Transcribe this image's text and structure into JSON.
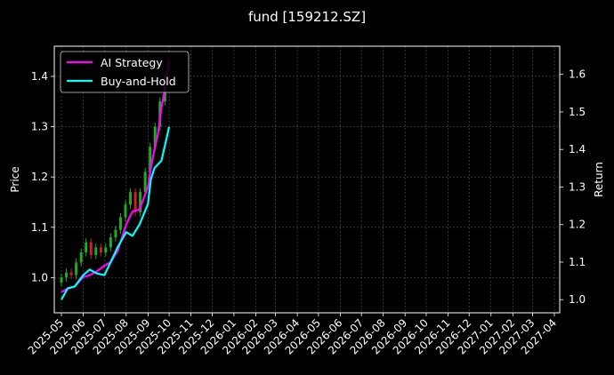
{
  "chart_data": {
    "type": "line",
    "title": "fund [159212.SZ]",
    "ylabel_left": "Price",
    "ylabel_right": "Return",
    "xlabel": "",
    "grid": true,
    "legend_position": "top-left",
    "background": "#000000",
    "x_ticks": [
      "2025-05",
      "2025-06",
      "2025-07",
      "2025-08",
      "2025-09",
      "2025-10",
      "2025-11",
      "2025-12",
      "2026-01",
      "2026-02",
      "2026-03",
      "2026-04",
      "2026-05",
      "2026-06",
      "2026-07",
      "2026-08",
      "2026-09",
      "2026-10",
      "2026-11",
      "2026-12",
      "2027-01",
      "2027-02",
      "2027-03",
      "2027-04"
    ],
    "y_left": {
      "ticks": [
        "1.0",
        "1.1",
        "1.2",
        "1.3",
        "1.4"
      ],
      "range": [
        0.93,
        1.46
      ]
    },
    "y_right": {
      "ticks": [
        "1.0",
        "1.1",
        "1.2",
        "1.3",
        "1.4",
        "1.5",
        "1.6"
      ],
      "range": [
        0.965,
        1.675
      ]
    },
    "series": [
      {
        "name": "AI Strategy",
        "axis": "right",
        "color": "#ff00ff",
        "x": [
          "2025-05-01",
          "2025-05-10",
          "2025-05-20",
          "2025-06-01",
          "2025-06-10",
          "2025-06-20",
          "2025-07-01",
          "2025-07-10",
          "2025-07-20",
          "2025-08-01",
          "2025-08-10",
          "2025-08-20",
          "2025-09-01",
          "2025-09-05",
          "2025-09-10",
          "2025-09-15",
          "2025-09-20",
          "2025-09-25",
          "2025-10-01"
        ],
        "y": [
          1.02,
          1.03,
          1.035,
          1.06,
          1.065,
          1.075,
          1.09,
          1.1,
          1.13,
          1.2,
          1.235,
          1.24,
          1.3,
          1.35,
          1.4,
          1.44,
          1.51,
          1.56,
          1.64
        ]
      },
      {
        "name": "Buy-and-Hold",
        "axis": "right",
        "color": "#00ffff",
        "x": [
          "2025-05-01",
          "2025-05-10",
          "2025-05-20",
          "2025-06-01",
          "2025-06-10",
          "2025-06-20",
          "2025-07-01",
          "2025-07-10",
          "2025-07-20",
          "2025-08-01",
          "2025-08-10",
          "2025-08-20",
          "2025-09-01",
          "2025-09-05",
          "2025-09-10",
          "2025-09-15",
          "2025-09-20",
          "2025-09-25",
          "2025-10-01"
        ],
        "y": [
          1.0,
          1.03,
          1.035,
          1.065,
          1.08,
          1.07,
          1.065,
          1.1,
          1.14,
          1.18,
          1.17,
          1.2,
          1.255,
          1.32,
          1.35,
          1.36,
          1.37,
          1.41,
          1.46
        ]
      }
    ],
    "candles": {
      "axis": "left",
      "up_color": "#22aa22",
      "down_color": "#cc2222",
      "x": [
        "2025-05-01",
        "2025-05-08",
        "2025-05-15",
        "2025-05-22",
        "2025-05-29",
        "2025-06-05",
        "2025-06-12",
        "2025-06-19",
        "2025-06-26",
        "2025-07-03",
        "2025-07-10",
        "2025-07-17",
        "2025-07-24",
        "2025-07-31",
        "2025-08-07",
        "2025-08-14",
        "2025-08-21",
        "2025-08-28",
        "2025-09-04",
        "2025-09-11",
        "2025-09-18",
        "2025-09-25"
      ],
      "values": [
        1.0,
        1.01,
        1.005,
        1.03,
        1.05,
        1.07,
        1.045,
        1.06,
        1.05,
        1.06,
        1.08,
        1.095,
        1.12,
        1.145,
        1.17,
        1.13,
        1.17,
        1.21,
        1.26,
        1.3,
        1.35,
        1.4
      ]
    }
  }
}
